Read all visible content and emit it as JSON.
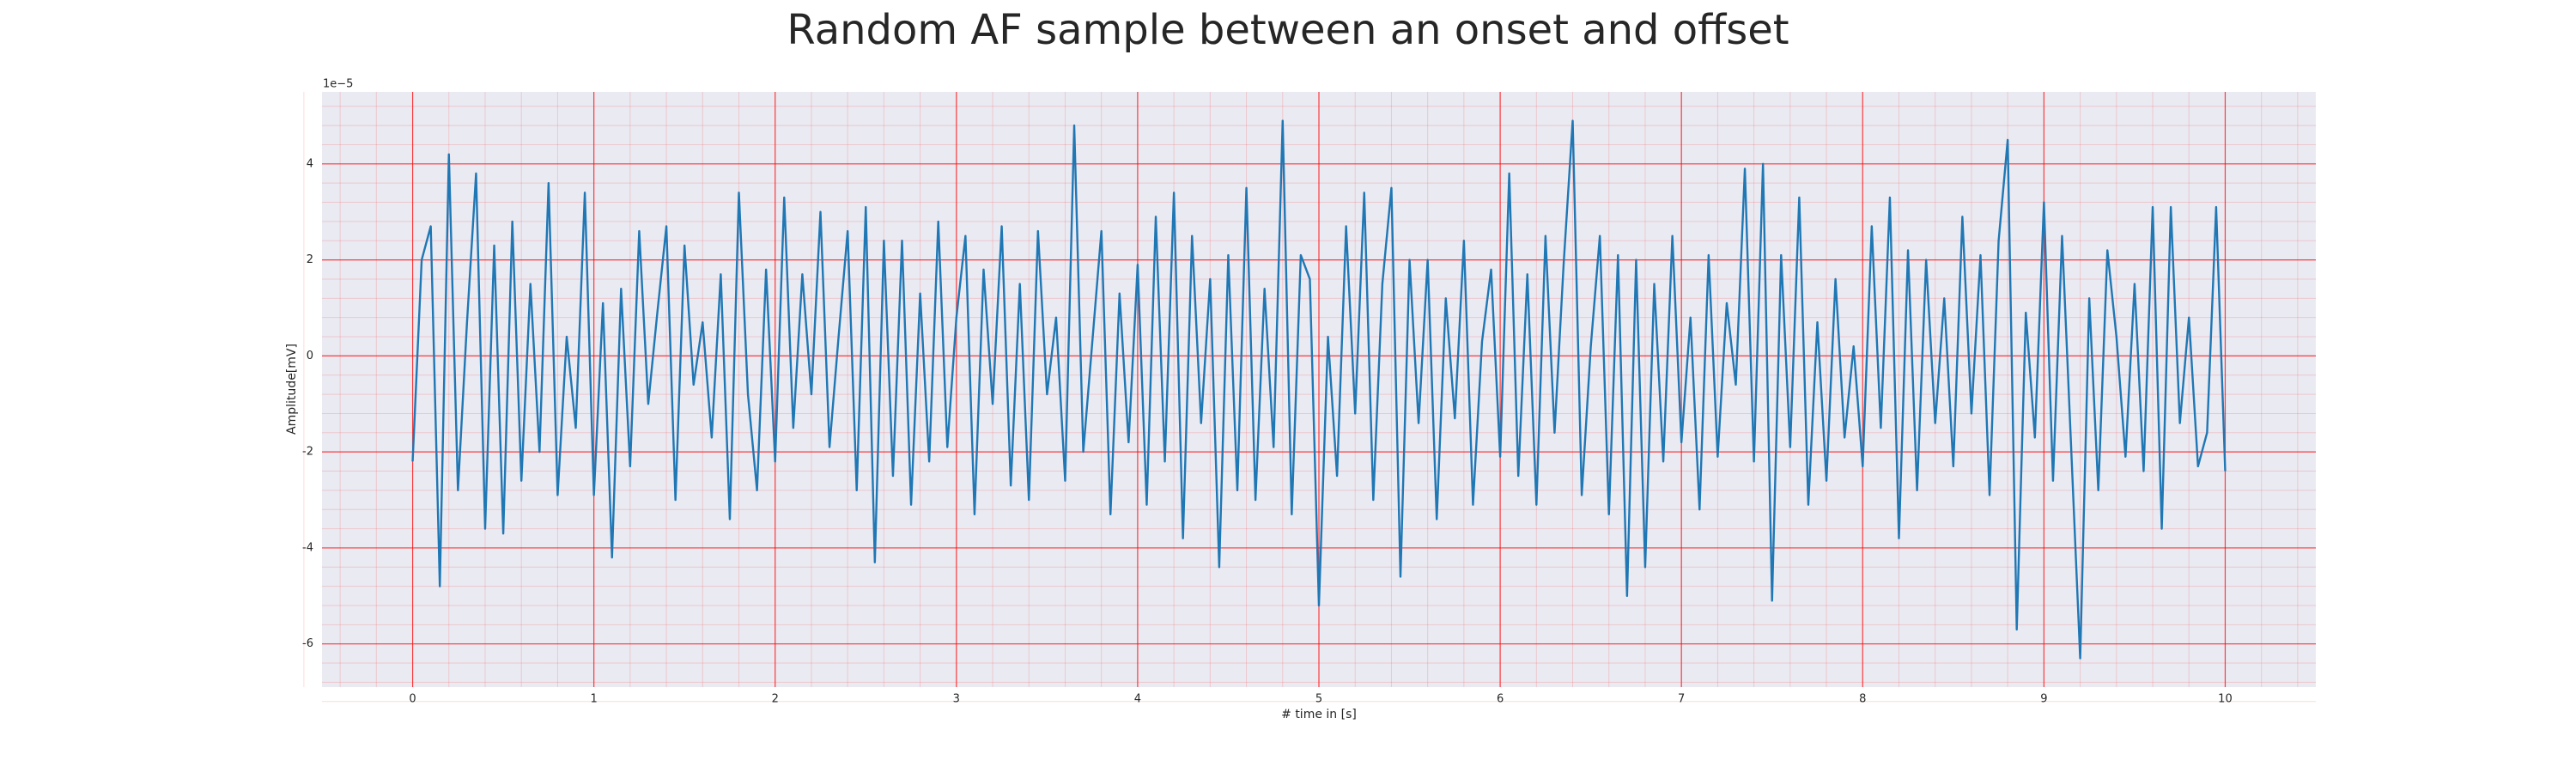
{
  "chart_data": {
    "type": "line",
    "title": "Random AF sample between an onset and offset",
    "xlabel": "# time in [s]",
    "ylabel": "Amplitude[mV]",
    "y_offset_label": "1e−5",
    "x": [
      0,
      0.05,
      0.1,
      0.15,
      0.2,
      0.25,
      0.3,
      0.35,
      0.4,
      0.45,
      0.5,
      0.55,
      0.6,
      0.65,
      0.7,
      0.75,
      0.8,
      0.85,
      0.9,
      0.95,
      1,
      1.05,
      1.1,
      1.15,
      1.2,
      1.25,
      1.3,
      1.35,
      1.4,
      1.45,
      1.5,
      1.55,
      1.6,
      1.65,
      1.7,
      1.75,
      1.8,
      1.85,
      1.9,
      1.95,
      2,
      2.05,
      2.1,
      2.15,
      2.2,
      2.25,
      2.3,
      2.35,
      2.4,
      2.45,
      2.5,
      2.55,
      2.6,
      2.65,
      2.7,
      2.75,
      2.8,
      2.85,
      2.9,
      2.95,
      3,
      3.05,
      3.1,
      3.15,
      3.2,
      3.25,
      3.3,
      3.35,
      3.4,
      3.45,
      3.5,
      3.55,
      3.6,
      3.65,
      3.7,
      3.75,
      3.8,
      3.85,
      3.9,
      3.95,
      4,
      4.05,
      4.1,
      4.15,
      4.2,
      4.25,
      4.3,
      4.35,
      4.4,
      4.45,
      4.5,
      4.55,
      4.6,
      4.65,
      4.7,
      4.75,
      4.8,
      4.85,
      4.9,
      4.95,
      5,
      5.05,
      5.1,
      5.15,
      5.2,
      5.25,
      5.3,
      5.35,
      5.4,
      5.45,
      5.5,
      5.55,
      5.6,
      5.65,
      5.7,
      5.75,
      5.8,
      5.85,
      5.9,
      5.95,
      6,
      6.05,
      6.1,
      6.15,
      6.2,
      6.25,
      6.3,
      6.35,
      6.4,
      6.45,
      6.5,
      6.55,
      6.6,
      6.65,
      6.7,
      6.75,
      6.8,
      6.85,
      6.9,
      6.95,
      7,
      7.05,
      7.1,
      7.15,
      7.2,
      7.25,
      7.3,
      7.35,
      7.4,
      7.45,
      7.5,
      7.55,
      7.6,
      7.65,
      7.7,
      7.75,
      7.8,
      7.85,
      7.9,
      7.95,
      8,
      8.05,
      8.1,
      8.15,
      8.2,
      8.25,
      8.3,
      8.35,
      8.4,
      8.45,
      8.5,
      8.55,
      8.6,
      8.65,
      8.7,
      8.75,
      8.8,
      8.85,
      8.9,
      8.95,
      9,
      9.05,
      9.1,
      9.15,
      9.2,
      9.25,
      9.3,
      9.35,
      9.4,
      9.45,
      9.5,
      9.55,
      9.6,
      9.65,
      9.7,
      9.75,
      9.8,
      9.85,
      9.9,
      9.95,
      10
    ],
    "series": [
      {
        "color": "#1f77b4",
        "values": [
          -2.2,
          2.0,
          2.7,
          -4.8,
          4.2,
          -2.8,
          0.7,
          3.8,
          -3.6,
          2.3,
          -3.7,
          2.8,
          -2.6,
          1.5,
          -2.0,
          3.6,
          -2.9,
          0.4,
          -1.5,
          3.4,
          -2.9,
          1.1,
          -4.2,
          1.4,
          -2.3,
          2.6,
          -1.0,
          0.9,
          2.7,
          -3.0,
          2.3,
          -0.6,
          0.7,
          -1.7,
          1.7,
          -3.4,
          3.4,
          -0.8,
          -2.8,
          1.8,
          -2.2,
          3.3,
          -1.5,
          1.7,
          -0.8,
          3.0,
          -1.9,
          0.4,
          2.6,
          -2.8,
          3.1,
          -4.3,
          2.4,
          -2.5,
          2.4,
          -3.1,
          1.3,
          -2.2,
          2.8,
          -1.9,
          0.8,
          2.5,
          -3.3,
          1.8,
          -1.0,
          2.7,
          -2.7,
          1.5,
          -3.0,
          2.6,
          -0.8,
          0.8,
          -2.6,
          4.8,
          -2.0,
          0.3,
          2.6,
          -3.3,
          1.3,
          -1.8,
          1.9,
          -3.1,
          2.9,
          -2.2,
          3.4,
          -3.8,
          2.5,
          -1.4,
          1.6,
          -4.4,
          2.1,
          -2.8,
          3.5,
          -3.0,
          1.4,
          -1.9,
          4.9,
          -3.3,
          2.1,
          1.6,
          -5.2,
          0.4,
          -2.5,
          2.7,
          -1.2,
          3.4,
          -3.0,
          1.5,
          3.5,
          -4.6,
          2.0,
          -1.4,
          2.0,
          -3.4,
          1.2,
          -1.3,
          2.4,
          -3.1,
          0.3,
          1.8,
          -2.1,
          3.8,
          -2.5,
          1.7,
          -3.1,
          2.5,
          -1.6,
          1.9,
          4.9,
          -2.9,
          0.2,
          2.5,
          -3.3,
          2.1,
          -5.0,
          2.0,
          -4.4,
          1.5,
          -2.2,
          2.5,
          -1.8,
          0.8,
          -3.2,
          2.1,
          -2.1,
          1.1,
          -0.6,
          3.9,
          -2.2,
          4.0,
          -5.1,
          2.1,
          -1.9,
          3.3,
          -3.1,
          0.7,
          -2.6,
          1.6,
          -1.7,
          0.2,
          -2.3,
          2.7,
          -1.5,
          3.3,
          -3.8,
          2.2,
          -2.8,
          2.0,
          -1.4,
          1.2,
          -2.3,
          2.9,
          -1.2,
          2.1,
          -2.9,
          2.4,
          4.5,
          -5.7,
          0.9,
          -1.7,
          3.2,
          -2.6,
          2.5,
          -1.9,
          -6.3,
          1.2,
          -2.8,
          2.2,
          0.4,
          -2.1,
          1.5,
          -2.4,
          3.1,
          -3.6,
          3.1,
          -1.4,
          0.8,
          -2.3,
          -1.6,
          3.1,
          -2.4
        ]
      }
    ],
    "xlim": [
      -0.5,
      10.5
    ],
    "ylim": [
      -6.9,
      5.5
    ],
    "xticks": [
      0,
      1,
      2,
      3,
      4,
      5,
      6,
      7,
      8,
      9,
      10
    ],
    "yticks": [
      -6,
      -4,
      -2,
      0,
      2,
      4
    ],
    "grid": true,
    "grid_color": "#ff0000",
    "minor_grid": true,
    "background": "#eaeaf2"
  }
}
